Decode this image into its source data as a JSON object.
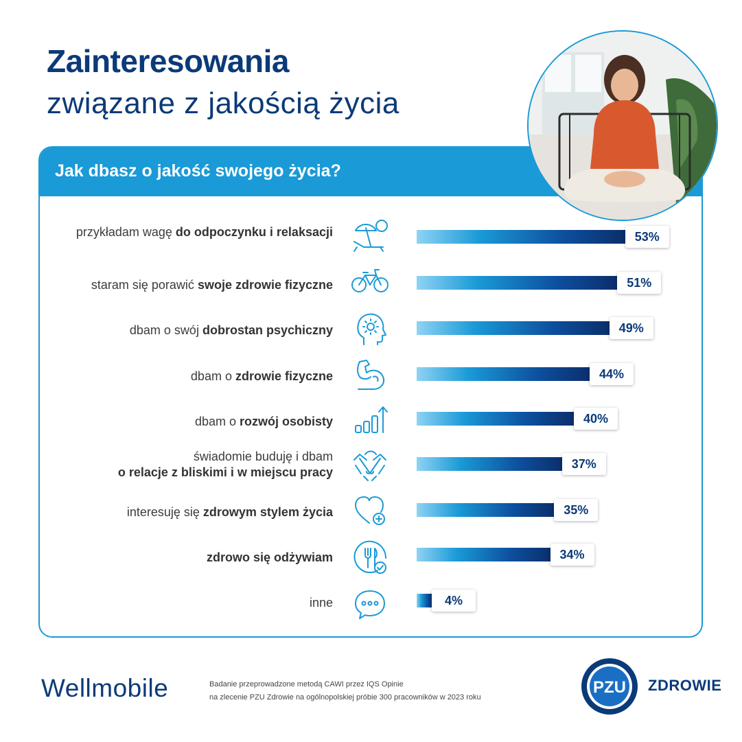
{
  "title": {
    "main": "Zainteresowania",
    "sub": "związane z jakością życia"
  },
  "question": "Jak dbasz o jakość swojego życia?",
  "chart_data": {
    "type": "bar",
    "orientation": "horizontal",
    "xlim": [
      0,
      100
    ],
    "categories": [
      "przykładam wagę do odpoczynku i relaksacji",
      "staram się porawić swoje zdrowie fizyczne",
      "dbam o swój dobrostan psychiczny",
      "dbam o zdrowie fizyczne",
      "dbam o rozwój osobisty",
      "świadomie buduję i dbam o relacje z bliskimi i w miejscu pracy",
      "interesuję się zdrowym stylem życia",
      "zdrowo się odżywiam",
      "inne"
    ],
    "values": [
      53,
      51,
      49,
      44,
      40,
      37,
      35,
      34,
      4
    ],
    "value_labels": [
      "53%",
      "51%",
      "49%",
      "44%",
      "40%",
      "37%",
      "35%",
      "34%",
      "4%"
    ],
    "bar_gradient": [
      "#8fd3f4",
      "#1a9ad6",
      "#0d4f9e",
      "#0b2e6b"
    ]
  },
  "rows": [
    {
      "lines": [
        {
          "plain": "przykładam wagę ",
          "bold": "do odpoczynku i relaksacji"
        }
      ],
      "icon": "beach-lounger-icon"
    },
    {
      "lines": [
        {
          "plain": "staram się porawić ",
          "bold": "swoje zdrowie fizyczne"
        }
      ],
      "icon": "bicycle-icon"
    },
    {
      "lines": [
        {
          "plain": "dbam o swój ",
          "bold": "dobrostan psychiczny"
        }
      ],
      "icon": "head-sun-icon"
    },
    {
      "lines": [
        {
          "plain": "dbam o ",
          "bold": "zdrowie fizyczne"
        }
      ],
      "icon": "flexed-arm-icon"
    },
    {
      "lines": [
        {
          "plain": "dbam o ",
          "bold": "rozwój osobisty"
        }
      ],
      "icon": "growth-chart-icon"
    },
    {
      "lines": [
        {
          "plain": "świadomie buduję i dbam",
          "bold": ""
        },
        {
          "plain": "",
          "bold": "o relacje z bliskimi i w miejscu pracy"
        }
      ],
      "icon": "handshake-icon"
    },
    {
      "lines": [
        {
          "plain": "interesuję się ",
          "bold": "zdrowym stylem życia"
        }
      ],
      "icon": "heart-plus-icon"
    },
    {
      "lines": [
        {
          "plain": "",
          "bold": "zdrowo się odżywiam"
        }
      ],
      "icon": "fork-knife-check-icon"
    },
    {
      "lines": [
        {
          "plain": "inne",
          "bold": ""
        }
      ],
      "icon": "speech-bubble-icon"
    }
  ],
  "footer": {
    "brand": "Wellmobile",
    "note_line1": "Badanie przeprowadzone metodą CAWI przez IQS Opinie",
    "note_line2": "na zlecenie PZU Zdrowie na ogólnopolskiej próbie 300 pracowników w 2023 roku",
    "logo_mark": "PZU",
    "logo_text": "ZDROWIE"
  },
  "colors": {
    "navy": "#0b3a78",
    "accent_blue": "#1a9ad6",
    "icon_blue": "#1a9ad6"
  }
}
